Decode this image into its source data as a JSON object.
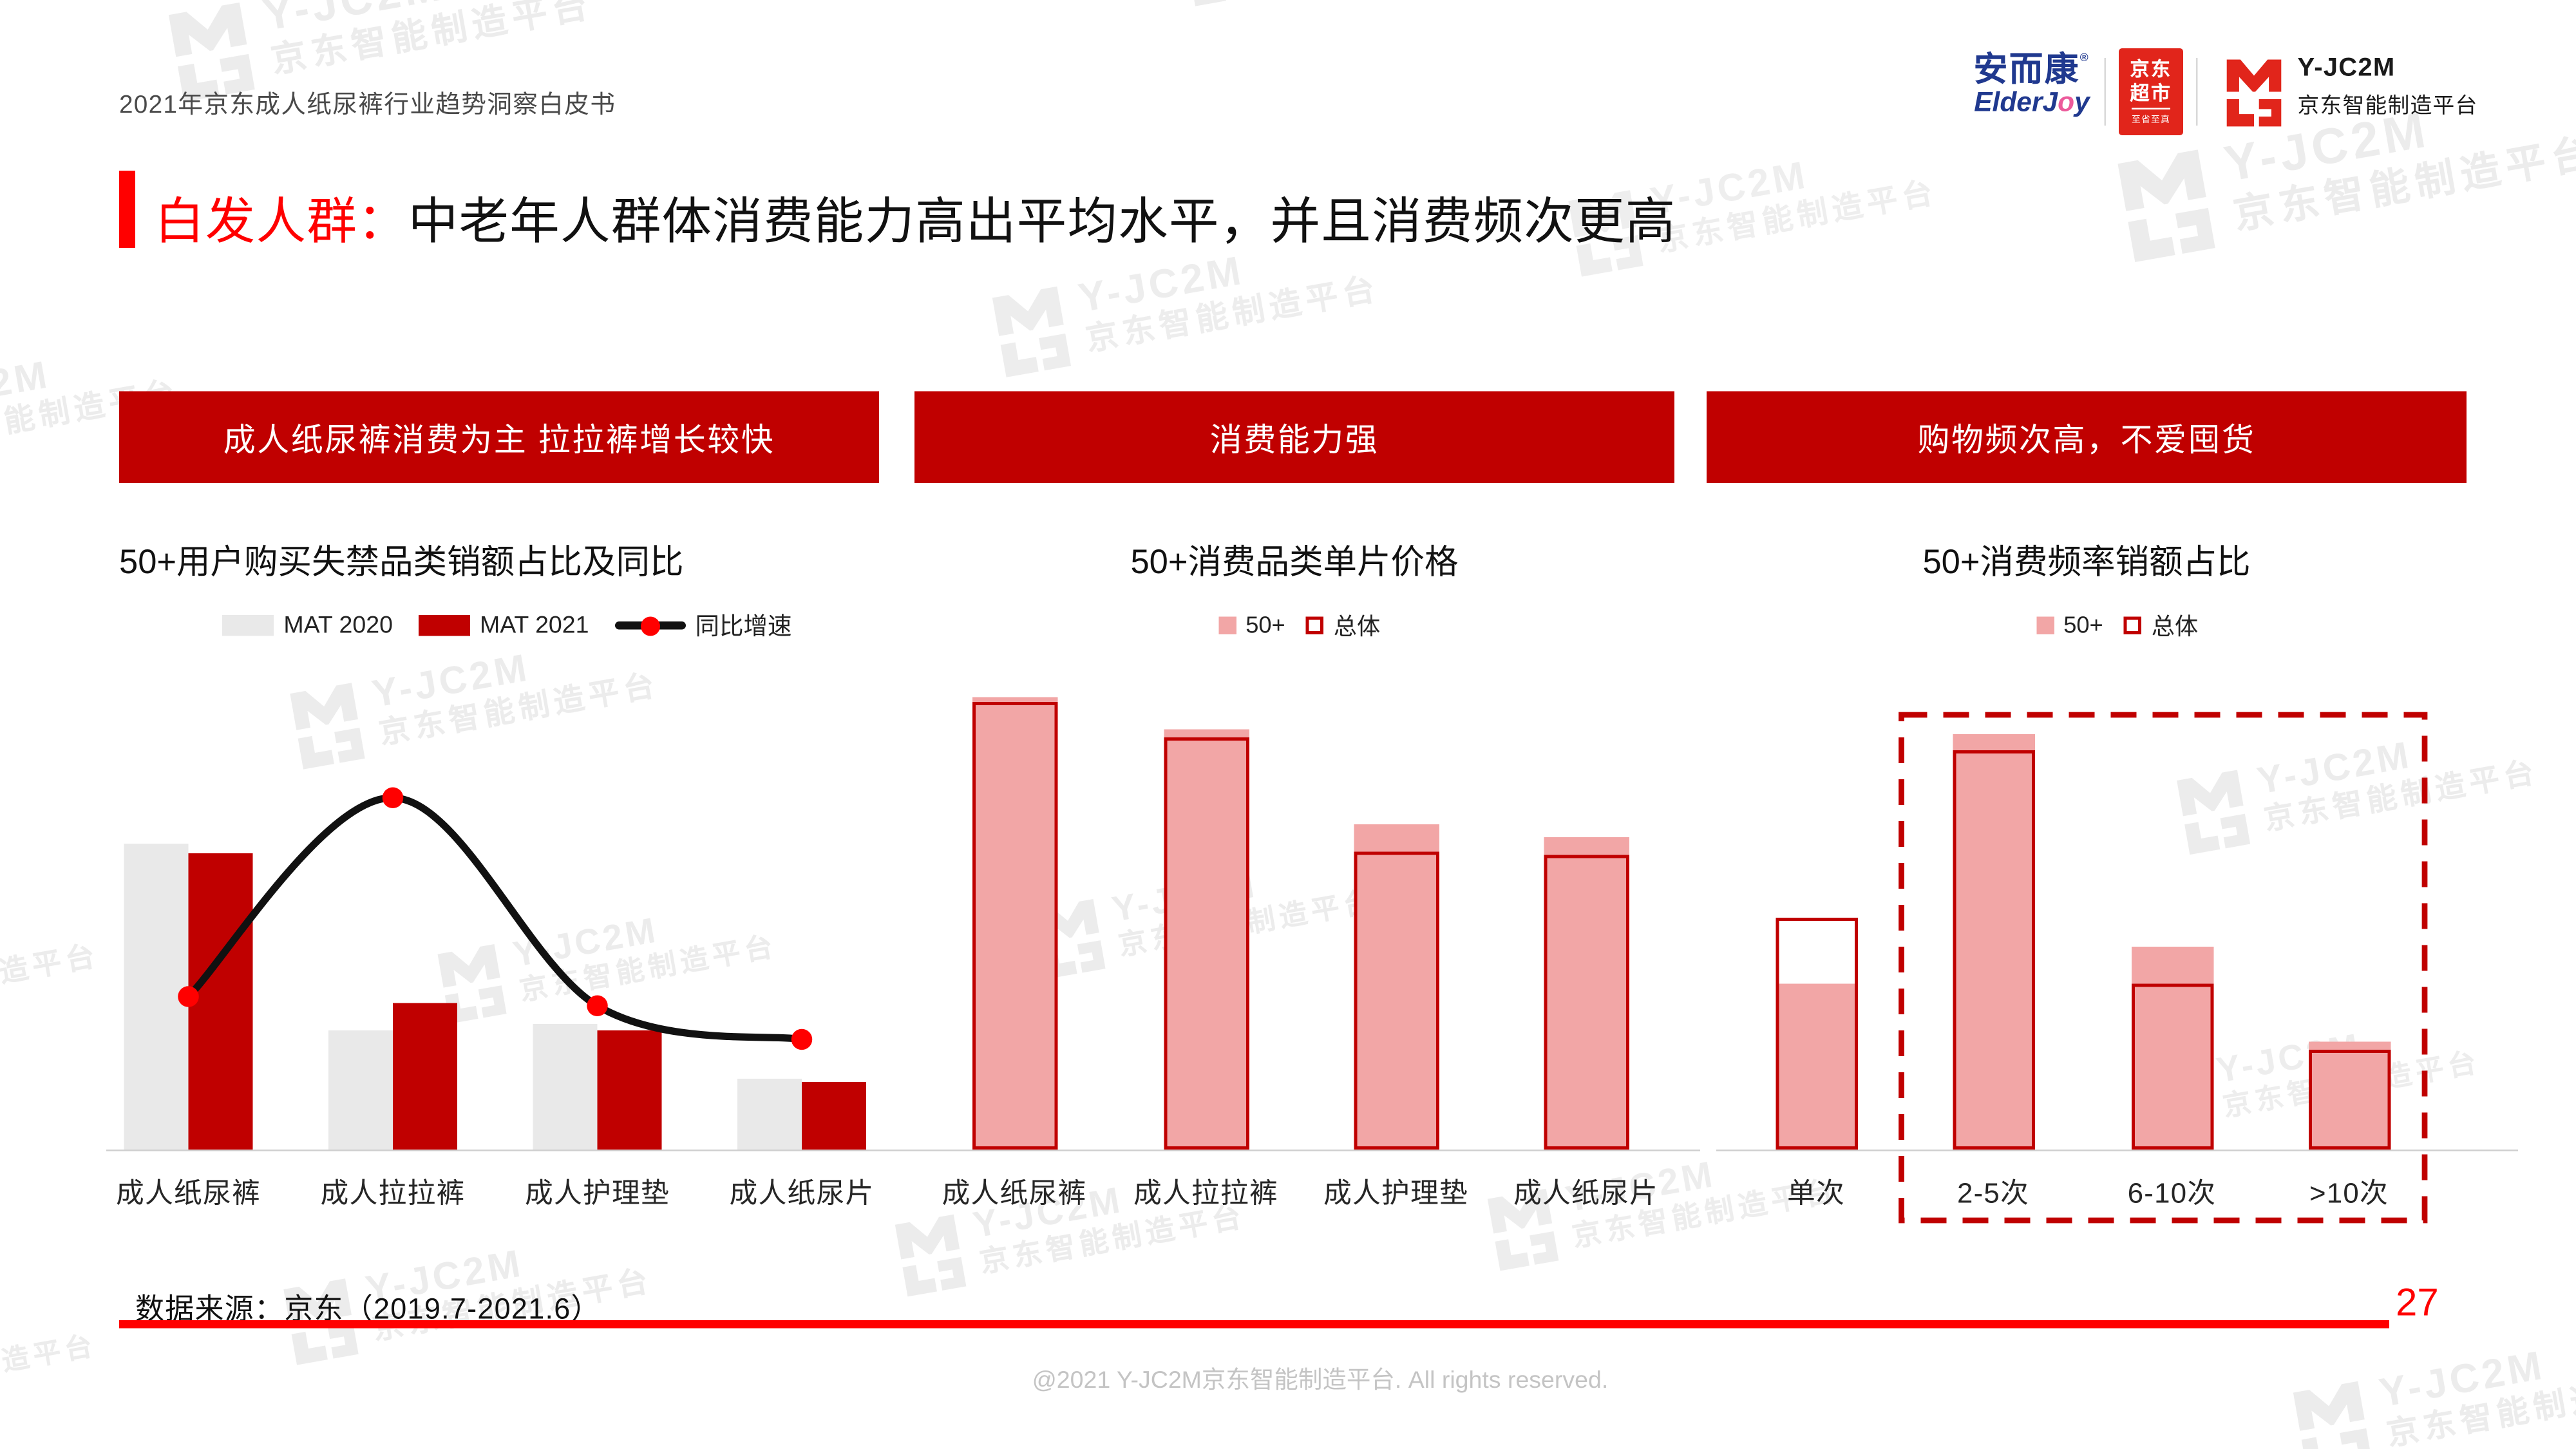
{
  "page": {
    "header_title": "2021年京东成人纸尿裤行业趋势洞察白皮书",
    "slide_title_highlight": "白发人群：",
    "slide_title_rest": "中老年人群体消费能力高出平均水平，并且消费频次更高",
    "source_note": "数据来源：京东（2019.7-2021.6）",
    "page_number": "27",
    "footer": "@2021 Y-JC2M京东智能制造平台. All rights reserved."
  },
  "logos": {
    "elderjoy_cn": "安而康",
    "elderjoy_reg": "®",
    "elderjoy_en_1": "ElderJ",
    "elderjoy_en_o": "o",
    "elderjoy_en_2": "y",
    "jd_market_line1": "京东",
    "jd_market_line2": "超市",
    "jd_market_slogan": "至省至真",
    "yjc2m_name": "Y-JC2M",
    "yjc2m_sub": "京东智能制造平台"
  },
  "watermark": {
    "line1": "Y-JC2M",
    "line2": "京东智能制造平台"
  },
  "sections": [
    {
      "banner": "成人纸尿裤消费为主 拉拉裤增长较快"
    },
    {
      "banner": "消费能力强"
    },
    {
      "banner": "购物频次高，不爱囤货"
    }
  ],
  "colors": {
    "accent_red": "#FF0000",
    "banner_red": "#C00000",
    "bar_red": "#C00000",
    "bar_gray": "#E9E9E9",
    "bar_pink": "#F2A6A6",
    "outline_red": "#C00000",
    "line_black": "#111111",
    "marker_red": "#FF0000",
    "jd_red": "#E1251B",
    "elderjoy_blue": "#20398F",
    "elderjoy_pink": "#EC5A9B",
    "footer_gray": "#C4C4C4"
  },
  "chart_data": [
    {
      "type": "bar",
      "subtype": "clustered-bars-with-line",
      "title": "50+用户购买失禁品类销额占比及同比",
      "categories": [
        "成人纸尿裤",
        "成人拉拉裤",
        "成人护理垫",
        "成人纸尿片"
      ],
      "series": [
        {
          "name": "MAT 2020",
          "type": "bar",
          "color": "#E9E9E9",
          "values": [
            100,
            39,
            41,
            23
          ]
        },
        {
          "name": "MAT 2021",
          "type": "bar",
          "color": "#C00000",
          "values": [
            97,
            48,
            39,
            22
          ]
        },
        {
          "name": "同比增速",
          "type": "line",
          "color": "#111111",
          "marker_color": "#FF0000",
          "values": [
            50,
            115,
            47,
            36
          ]
        }
      ],
      "ylabel": "",
      "xlabel": "",
      "value_axis_visible": false,
      "note": "no numeric axis or data labels shown; values are relative heights (tallest bar = 100)",
      "legend_position": "top",
      "grid": false
    },
    {
      "type": "bar",
      "subtype": "overlapped-filled-vs-outline",
      "title": "50+消费品类单片价格",
      "categories": [
        "成人纸尿裤",
        "成人拉拉裤",
        "成人护理垫",
        "成人纸尿片"
      ],
      "series": [
        {
          "name": "50+",
          "style": "filled",
          "color": "#F2A6A6",
          "values": [
            100,
            93,
            72,
            69
          ]
        },
        {
          "name": "总体",
          "style": "outline",
          "color": "#C00000",
          "values": [
            99,
            91,
            66,
            65
          ]
        }
      ],
      "ylabel": "",
      "xlabel": "",
      "value_axis_visible": false,
      "note": "no numeric axis or data labels shown; values are relative heights (tallest bar = 100)",
      "legend_position": "top",
      "grid": false
    },
    {
      "type": "bar",
      "subtype": "overlapped-filled-vs-outline",
      "title": "50+消费频率销额占比",
      "categories": [
        "单次",
        "2-5次",
        "6-10次",
        ">10次"
      ],
      "series": [
        {
          "name": "50+",
          "style": "filled",
          "color": "#F2A6A6",
          "values": [
            40,
            100,
            49,
            26
          ]
        },
        {
          "name": "总体",
          "style": "outline",
          "color": "#C00000",
          "values": [
            56,
            96,
            40,
            24
          ]
        }
      ],
      "highlight_box_categories": [
        "2-5次",
        "6-10次",
        ">10次"
      ],
      "ylabel": "",
      "xlabel": "",
      "value_axis_visible": false,
      "note": "dashed red box highlights multi-purchase frequencies; values are relative heights (tallest bar = 100)",
      "legend_position": "top",
      "grid": false
    }
  ]
}
